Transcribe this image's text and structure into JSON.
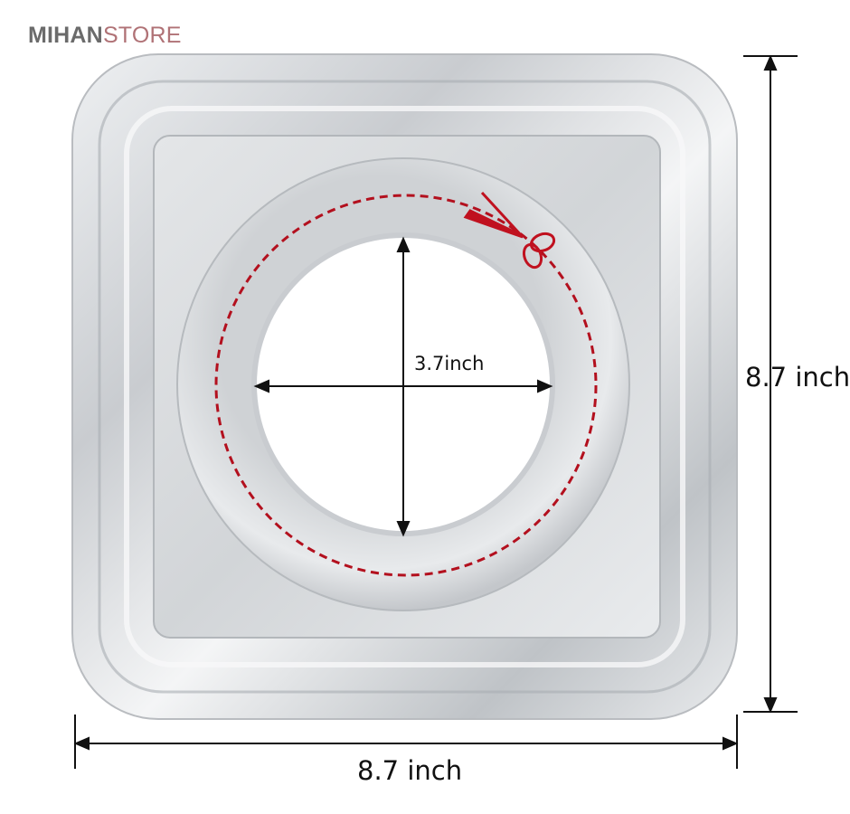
{
  "logo": {
    "part1": "MIHAN",
    "part2": "STORE",
    "color1": "#6b6b6b",
    "color2": "#b07276"
  },
  "dimensions": {
    "width_label": "8.7 inch",
    "height_label": "8.7 inch",
    "hole_diameter_label": "3.7inch"
  },
  "colors": {
    "cut_line": "#b3101e",
    "foil": "#d4d6d9"
  },
  "icons": {
    "cut": "scissors-icon"
  }
}
